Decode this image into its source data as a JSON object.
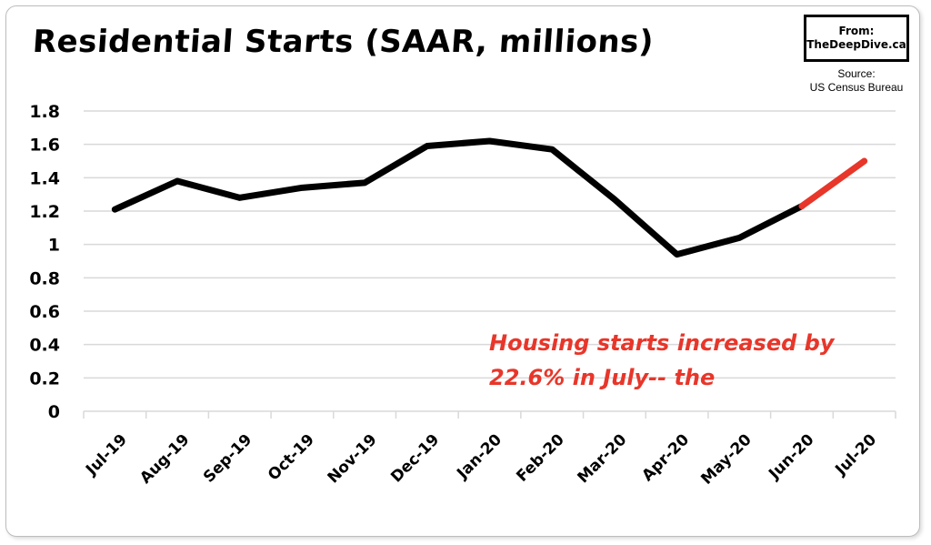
{
  "brand": {
    "from_label": "From:",
    "site": "TheDeepDive.ca"
  },
  "source": {
    "label": "Source:",
    "value": "US Census Bureau"
  },
  "annotation": {
    "text": "Housing starts increased by 22.6% in July-- the"
  },
  "colors": {
    "line": "#000000",
    "highlight": "#e8362a",
    "grid": "#d9d9d9"
  },
  "chart_data": {
    "type": "line",
    "title": "Residential Starts (SAAR, millions)",
    "xlabel": "",
    "ylabel": "",
    "ylim": [
      0,
      1.8
    ],
    "yticks": [
      "0",
      "0.2",
      "0.4",
      "0.6",
      "0.8",
      "1",
      "1.2",
      "1.4",
      "1.6",
      "1.8"
    ],
    "grid": true,
    "legend": "none",
    "categories": [
      "Jul-19",
      "Aug-19",
      "Sep-19",
      "Oct-19",
      "Nov-19",
      "Dec-19",
      "Jan-20",
      "Feb-20",
      "Mar-20",
      "Apr-20",
      "May-20",
      "Jun-20",
      "Jul-20"
    ],
    "series": [
      {
        "values": [
          1.21,
          1.38,
          1.28,
          1.34,
          1.37,
          1.59,
          1.62,
          1.57,
          1.27,
          0.94,
          1.04,
          1.23,
          1.5
        ]
      }
    ],
    "highlight_last_segment": true
  }
}
